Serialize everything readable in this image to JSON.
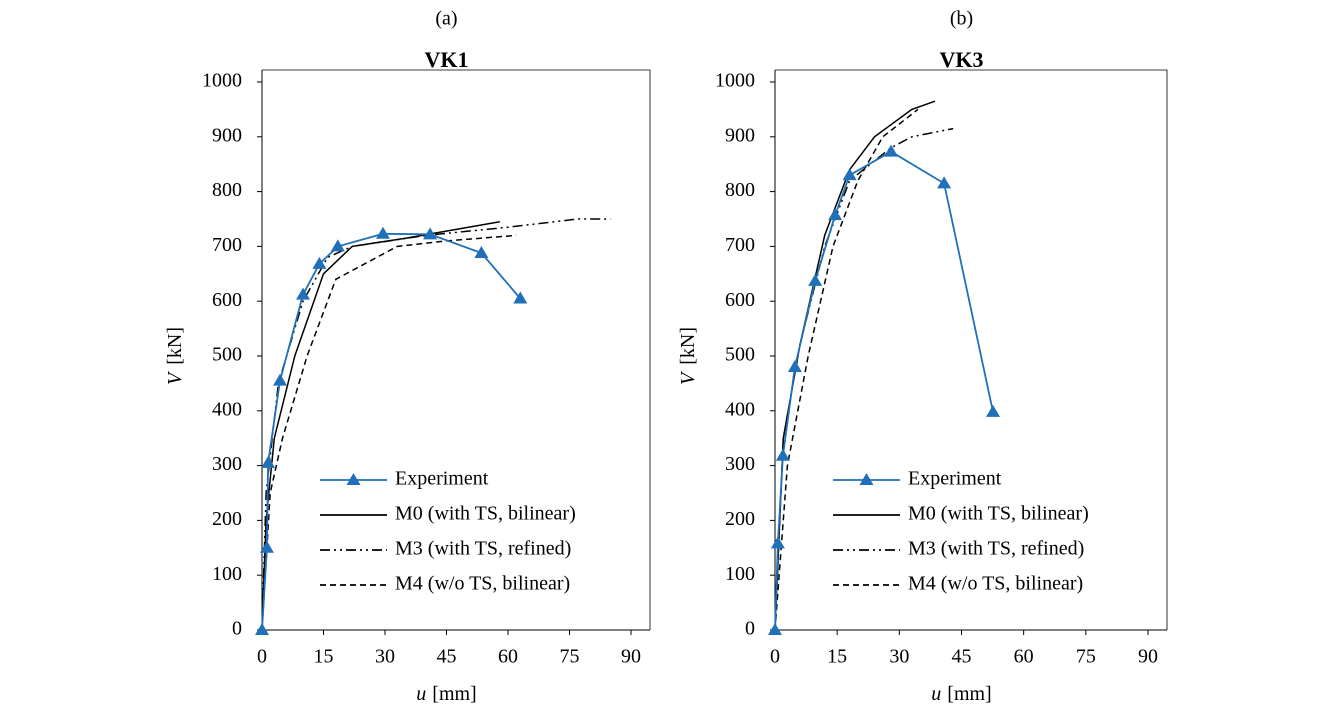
{
  "chart_data": [
    {
      "type": "line",
      "panel_label": "(a)",
      "title": "VK1",
      "x_label_symbol": "u",
      "x_label_unit": "[mm]",
      "y_label_symbol": "V",
      "y_label_unit": "[kN]",
      "xlim": [
        0,
        90
      ],
      "xticks": [
        0,
        15,
        30,
        45,
        60,
        75,
        90
      ],
      "ylim": [
        0,
        1000
      ],
      "yticks": [
        0,
        100,
        200,
        300,
        400,
        500,
        600,
        700,
        800,
        900,
        1000
      ],
      "series": [
        {
          "name": "Experiment",
          "color": "#1f70b8",
          "dash": "solid",
          "marker": "triangle",
          "x": [
            0,
            1.2,
            1.5,
            4.4,
            10,
            14,
            18.5,
            29.5,
            41,
            53.5,
            63
          ],
          "values": [
            0,
            150,
            305,
            455,
            612,
            668,
            700,
            723,
            722,
            688,
            605
          ]
        },
        {
          "name": "M0 (with TS, bilinear)",
          "color": "#000000",
          "dash": "solid",
          "marker": "none",
          "x": [
            0,
            1,
            3,
            8,
            15,
            22,
            35,
            58
          ],
          "values": [
            0,
            200,
            350,
            500,
            650,
            700,
            715,
            745
          ]
        },
        {
          "name": "M3 (with TS, refined)",
          "color": "#000000",
          "dash": "dashdotdot",
          "marker": "none",
          "x": [
            0,
            1,
            4,
            10,
            16,
            22,
            40,
            60,
            77,
            85
          ],
          "values": [
            0,
            250,
            450,
            600,
            680,
            700,
            720,
            735,
            750,
            750
          ]
        },
        {
          "name": "M4 (w/o TS, bilinear)",
          "color": "#000000",
          "dash": "dashed",
          "marker": "none",
          "x": [
            0,
            2,
            5,
            11,
            18,
            33,
            45,
            62
          ],
          "values": [
            0,
            250,
            350,
            500,
            640,
            700,
            710,
            720
          ]
        }
      ]
    },
    {
      "type": "line",
      "panel_label": "(b)",
      "title": "VK3",
      "x_label_symbol": "u",
      "x_label_unit": "[mm]",
      "y_label_symbol": "V",
      "y_label_unit": "[kN]",
      "xlim": [
        0,
        90
      ],
      "xticks": [
        0,
        15,
        30,
        45,
        60,
        75,
        90
      ],
      "ylim": [
        0,
        1000
      ],
      "yticks": [
        0,
        100,
        200,
        300,
        400,
        500,
        600,
        700,
        800,
        900,
        1000
      ],
      "series": [
        {
          "name": "Experiment",
          "color": "#1f70b8",
          "dash": "solid",
          "marker": "triangle",
          "x": [
            0,
            0.7,
            1.9,
            4.8,
            9.7,
            14.5,
            18,
            28,
            40.8,
            52.6
          ],
          "values": [
            0,
            158,
            318,
            480,
            637,
            757,
            830,
            873,
            815,
            398
          ]
        },
        {
          "name": "M0 (with TS, bilinear)",
          "color": "#000000",
          "dash": "solid",
          "marker": "none",
          "x": [
            0,
            2,
            6,
            12,
            18,
            24,
            33,
            38.6
          ],
          "values": [
            0,
            350,
            520,
            720,
            840,
            900,
            950,
            965
          ]
        },
        {
          "name": "M3 (with TS, refined)",
          "color": "#000000",
          "dash": "dashdotdot",
          "marker": "none",
          "x": [
            0,
            2,
            6,
            12,
            18,
            28,
            33,
            43
          ],
          "values": [
            0,
            350,
            520,
            700,
            820,
            880,
            900,
            915
          ]
        },
        {
          "name": "M4 (w/o TS, bilinear)",
          "color": "#000000",
          "dash": "dashed",
          "marker": "none",
          "x": [
            0,
            3,
            8,
            14,
            20,
            26,
            34.5
          ],
          "values": [
            0,
            300,
            500,
            700,
            820,
            900,
            950
          ]
        }
      ]
    }
  ]
}
